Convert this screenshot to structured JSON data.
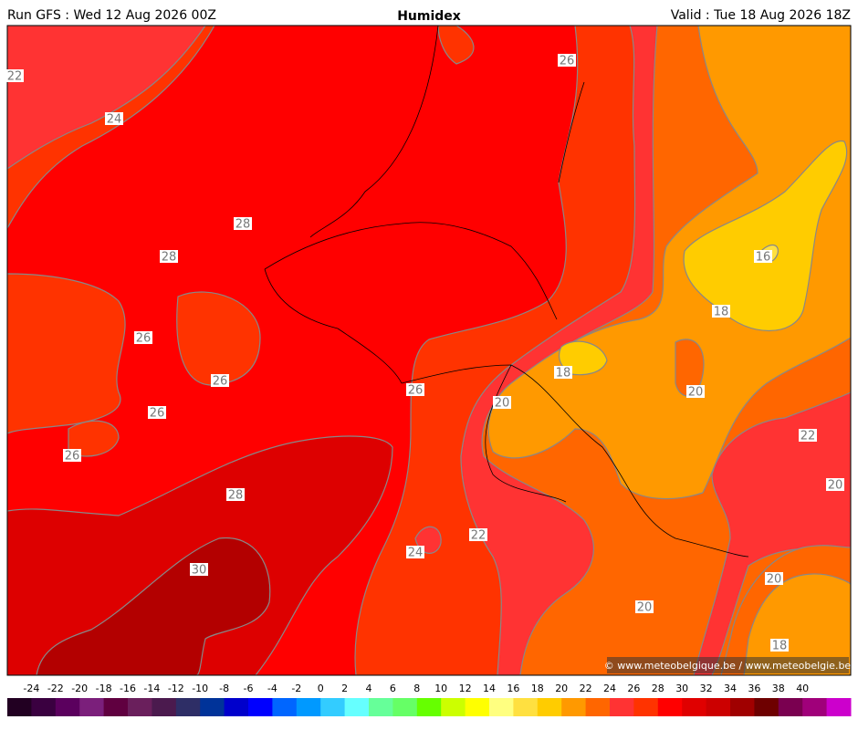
{
  "header": {
    "left": "Run GFS : Wed 12 Aug 2026 00Z",
    "title": "Humidex",
    "right": "Valid : Tue 18 Aug 2026 18Z"
  },
  "contour_labels": [
    22,
    24,
    26,
    28,
    28,
    16,
    18,
    26,
    18,
    26,
    26,
    20,
    20,
    26,
    22,
    26,
    20,
    28,
    22,
    24,
    30,
    20,
    20,
    18
  ],
  "credit": "© www.meteobelgique.be / www.meteobelgie.be",
  "colorbar": {
    "ticks": [
      -24,
      -22,
      -20,
      -18,
      -16,
      -14,
      -12,
      -10,
      -8,
      -6,
      -4,
      -2,
      0,
      2,
      4,
      6,
      8,
      10,
      12,
      14,
      16,
      18,
      20,
      22,
      24,
      26,
      28,
      30,
      32,
      34,
      36,
      38,
      40
    ],
    "colors": [
      "#220022",
      "#3a0040",
      "#5b005e",
      "#7b1f7b",
      "#600040",
      "#6a1f5c",
      "#4b1a4e",
      "#2e2e66",
      "#003399",
      "#0000cc",
      "#0000ff",
      "#0066ff",
      "#0099ff",
      "#33ccff",
      "#66ffff",
      "#66ff99",
      "#66ff66",
      "#66ff00",
      "#ccff00",
      "#ffff00",
      "#ffff80",
      "#ffe040",
      "#ffcc00",
      "#ff9900",
      "#ff6600",
      "#ff3333",
      "#ff3300",
      "#ff0000",
      "#e00000",
      "#cc0000",
      "#a00000",
      "#6e0000",
      "#7a0050",
      "#a0007a",
      "#cc00cc"
    ]
  }
}
